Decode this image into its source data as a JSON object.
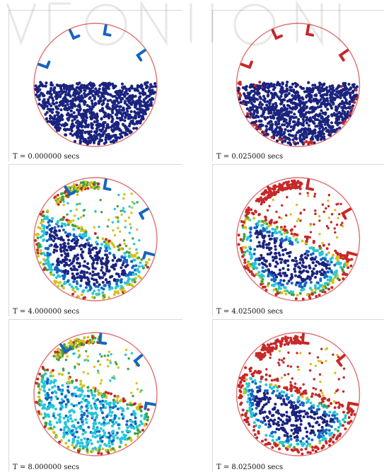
{
  "colors": {
    "boundary": "#e07070",
    "dark_blue": "#1a237e",
    "mid_blue": "#1565c0",
    "cyan": "#26c6da",
    "green": "#43a047",
    "yellow": "#d4c21c",
    "red": "#c62828"
  },
  "panels": [
    {
      "id": "t0-000",
      "caption": "T = 0.000000 secs",
      "stage": "initial",
      "red_edge": false
    },
    {
      "id": "t0-025",
      "caption": "T = 0.025000 secs",
      "stage": "initial",
      "red_edge": true
    },
    {
      "id": "t4-000",
      "caption": "T = 4.000000 secs",
      "stage": "mid",
      "red_edge": false
    },
    {
      "id": "t4-025",
      "caption": "T = 4.025000 secs",
      "stage": "mid",
      "red_edge": true
    },
    {
      "id": "t8-000",
      "caption": "T = 8.000000 secs",
      "stage": "late",
      "red_edge": false
    },
    {
      "id": "t8-025",
      "caption": "T = 8.025000 secs",
      "stage": "late",
      "red_edge": true
    }
  ]
}
